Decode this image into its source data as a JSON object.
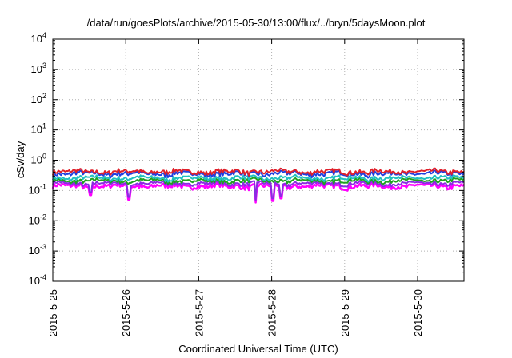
{
  "chart_data": {
    "type": "line",
    "title": "/data/run/goesPlots/archive/2015-05-30/13:00/flux/../bryn/5daysMoon.plot",
    "xlabel": "Coordinated Universal Time (UTC)",
    "ylabel": "cSv/day",
    "yscale": "log",
    "ylim": [
      0.0001,
      10000
    ],
    "xlim_days": [
      "2015-05-25 00:00",
      "2015-05-30 13:00"
    ],
    "grid": true,
    "x_ticks": [
      "2015-5-25",
      "2015-5-26",
      "2015-5-27",
      "2015-5-28",
      "2015-5-29",
      "2015-5-30"
    ],
    "y_ticks": [
      {
        "base": "10",
        "exp": "-4"
      },
      {
        "base": "10",
        "exp": "-3"
      },
      {
        "base": "10",
        "exp": "-2"
      },
      {
        "base": "10",
        "exp": "-1"
      },
      {
        "base": "10",
        "exp": "0"
      },
      {
        "base": "10",
        "exp": "1"
      },
      {
        "base": "10",
        "exp": "2"
      },
      {
        "base": "10",
        "exp": "3"
      },
      {
        "base": "10",
        "exp": "4"
      }
    ],
    "series": [
      {
        "color": "#e0202a",
        "level": 0.42,
        "amp": 0.09
      },
      {
        "color": "#2040e0",
        "level": 0.36,
        "amp": 0.08
      },
      {
        "color": "#20c0c0",
        "level": 0.26,
        "amp": 0.05
      },
      {
        "color": "#20a020",
        "level": 0.21,
        "amp": 0.04
      },
      {
        "color": "#8a2be2",
        "level": 0.17,
        "amp": 0.03
      },
      {
        "color": "#ff00ff",
        "level": 0.14,
        "amp": 0.03
      }
    ],
    "dips": [
      {
        "day": 0.52,
        "value": 0.07
      },
      {
        "day": 1.05,
        "value": 0.05
      },
      {
        "day": 2.78,
        "value": 0.04
      },
      {
        "day": 3.02,
        "value": 0.045
      },
      {
        "day": 3.13,
        "value": 0.055
      }
    ]
  }
}
